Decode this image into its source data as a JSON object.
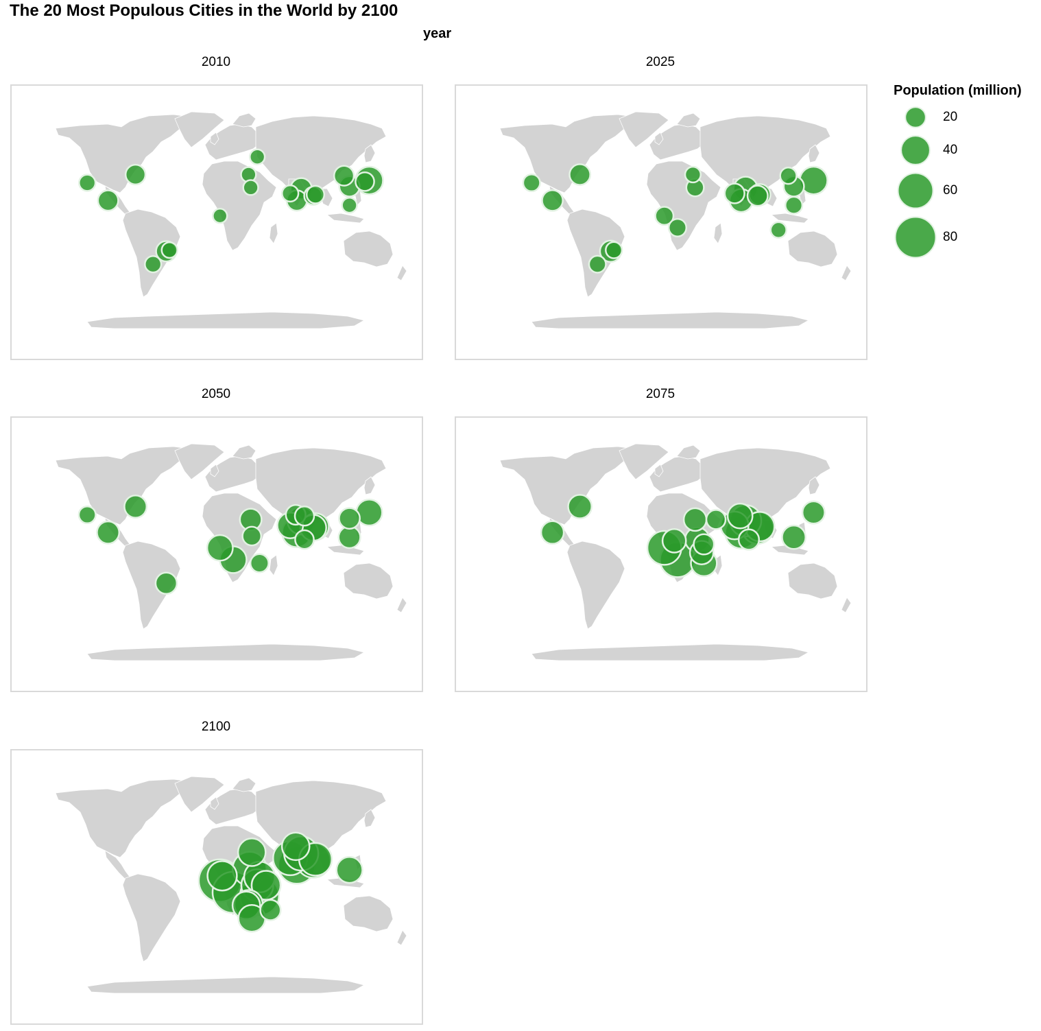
{
  "title": "The 20 Most Populous Cities in the World by 2100",
  "facet_strip_title": "year",
  "colors": {
    "land": "#d3d3d3",
    "bubble": "#2a9a2a",
    "bubble_stroke": "#e2f2e2",
    "panel_border": "#d9d9d9"
  },
  "legend": {
    "title": "Population (million)",
    "entries": [
      {
        "label": "20",
        "value": 20
      },
      {
        "label": "40",
        "value": 40
      },
      {
        "label": "60",
        "value": 60
      },
      {
        "label": "80",
        "value": 80
      }
    ]
  },
  "map_data": {
    "type": "bubble-map",
    "size_variable": "Population (million)",
    "panels": [
      {
        "year": "2010",
        "cities": [
          {
            "lon": -118,
            "lat": 34,
            "pop": 13
          },
          {
            "lon": -99,
            "lat": 19,
            "pop": 20
          },
          {
            "lon": -74,
            "lat": 41,
            "pop": 19
          },
          {
            "lon": -58,
            "lat": -35,
            "pop": 13
          },
          {
            "lon": -46,
            "lat": -24,
            "pop": 20
          },
          {
            "lon": -43,
            "lat": -23,
            "pop": 12
          },
          {
            "lon": 37,
            "lat": 56,
            "pop": 11
          },
          {
            "lon": 29,
            "lat": 41,
            "pop": 11
          },
          {
            "lon": 31,
            "lat": 30,
            "pop": 11
          },
          {
            "lon": 3,
            "lat": 6,
            "pop": 10
          },
          {
            "lon": 67,
            "lat": 25,
            "pop": 13
          },
          {
            "lon": 73,
            "lat": 19,
            "pop": 20
          },
          {
            "lon": 77,
            "lat": 29,
            "pop": 22
          },
          {
            "lon": 88,
            "lat": 23,
            "pop": 16
          },
          {
            "lon": 116,
            "lat": 40,
            "pop": 19
          },
          {
            "lon": 121,
            "lat": 31,
            "pop": 20
          },
          {
            "lon": 121,
            "lat": 15,
            "pop": 11
          },
          {
            "lon": 139,
            "lat": 36,
            "pop": 37
          },
          {
            "lon": 135,
            "lat": 35,
            "pop": 17
          },
          {
            "lon": 90,
            "lat": 24,
            "pop": 15
          }
        ]
      },
      {
        "year": "2025",
        "cities": [
          {
            "lon": -118,
            "lat": 34,
            "pop": 14
          },
          {
            "lon": -99,
            "lat": 19,
            "pop": 21
          },
          {
            "lon": -74,
            "lat": 41,
            "pop": 21
          },
          {
            "lon": -58,
            "lat": -35,
            "pop": 14
          },
          {
            "lon": -46,
            "lat": -24,
            "pop": 22
          },
          {
            "lon": -43,
            "lat": -23,
            "pop": 13
          },
          {
            "lon": 31,
            "lat": 30,
            "pop": 15
          },
          {
            "lon": 29,
            "lat": 41,
            "pop": 12
          },
          {
            "lon": 3,
            "lat": 6,
            "pop": 16
          },
          {
            "lon": 15,
            "lat": -4,
            "pop": 15
          },
          {
            "lon": 67,
            "lat": 25,
            "pop": 19
          },
          {
            "lon": 73,
            "lat": 19,
            "pop": 26
          },
          {
            "lon": 77,
            "lat": 29,
            "pop": 28
          },
          {
            "lon": 90,
            "lat": 24,
            "pop": 22
          },
          {
            "lon": 116,
            "lat": 40,
            "pop": 13
          },
          {
            "lon": 121,
            "lat": 31,
            "pop": 20
          },
          {
            "lon": 121,
            "lat": 15,
            "pop": 14
          },
          {
            "lon": 139,
            "lat": 36,
            "pop": 37
          },
          {
            "lon": 107,
            "lat": -6,
            "pop": 12
          },
          {
            "lon": 88,
            "lat": 23,
            "pop": 20
          }
        ]
      },
      {
        "year": "2050",
        "cities": [
          {
            "lon": -118,
            "lat": 34,
            "pop": 14
          },
          {
            "lon": -99,
            "lat": 19,
            "pop": 24
          },
          {
            "lon": -74,
            "lat": 41,
            "pop": 24
          },
          {
            "lon": -46,
            "lat": -24,
            "pop": 22
          },
          {
            "lon": 3,
            "lat": 6,
            "pop": 32
          },
          {
            "lon": 15,
            "lat": -4,
            "pop": 35
          },
          {
            "lon": 31,
            "lat": 30,
            "pop": 23
          },
          {
            "lon": 32,
            "lat": 16,
            "pop": 17
          },
          {
            "lon": 39,
            "lat": -7,
            "pop": 16
          },
          {
            "lon": 67,
            "lat": 25,
            "pop": 32
          },
          {
            "lon": 73,
            "lat": 19,
            "pop": 42
          },
          {
            "lon": 77,
            "lat": 29,
            "pop": 37
          },
          {
            "lon": 72,
            "lat": 34,
            "pop": 19
          },
          {
            "lon": 80,
            "lat": 33,
            "pop": 18
          },
          {
            "lon": 88,
            "lat": 23,
            "pop": 33
          },
          {
            "lon": 90,
            "lat": 24,
            "pop": 35
          },
          {
            "lon": 80,
            "lat": 13,
            "pop": 17
          },
          {
            "lon": 121,
            "lat": 31,
            "pop": 21
          },
          {
            "lon": 139,
            "lat": 36,
            "pop": 33
          },
          {
            "lon": 121,
            "lat": 15,
            "pop": 23
          }
        ]
      },
      {
        "year": "2075",
        "cities": [
          {
            "lon": -99,
            "lat": 19,
            "pop": 25
          },
          {
            "lon": -74,
            "lat": 41,
            "pop": 27
          },
          {
            "lon": 3,
            "lat": 6,
            "pop": 56
          },
          {
            "lon": 15,
            "lat": -4,
            "pop": 60
          },
          {
            "lon": 12,
            "lat": 12,
            "pop": 27
          },
          {
            "lon": 31,
            "lat": 30,
            "pop": 25
          },
          {
            "lon": 33,
            "lat": 13,
            "pop": 29
          },
          {
            "lon": 37,
            "lat": 2,
            "pop": 27
          },
          {
            "lon": 39,
            "lat": -7,
            "pop": 33
          },
          {
            "lon": 39,
            "lat": 9,
            "pop": 20
          },
          {
            "lon": 67,
            "lat": 25,
            "pop": 38
          },
          {
            "lon": 73,
            "lat": 19,
            "pop": 50
          },
          {
            "lon": 77,
            "lat": 29,
            "pop": 48
          },
          {
            "lon": 72,
            "lat": 33,
            "pop": 30
          },
          {
            "lon": 88,
            "lat": 23,
            "pop": 50
          },
          {
            "lon": 90,
            "lat": 24,
            "pop": 42
          },
          {
            "lon": 80,
            "lat": 13,
            "pop": 20
          },
          {
            "lon": 121,
            "lat": 15,
            "pop": 27
          },
          {
            "lon": 139,
            "lat": 36,
            "pop": 24
          },
          {
            "lon": 50,
            "lat": 30,
            "pop": 18
          }
        ]
      },
      {
        "year": "2100",
        "cities": [
          {
            "lon": 3,
            "lat": 6,
            "pop": 88
          },
          {
            "lon": 15,
            "lat": -4,
            "pop": 83
          },
          {
            "lon": 5,
            "lat": 10,
            "pop": 42
          },
          {
            "lon": 30,
            "lat": 16,
            "pop": 56
          },
          {
            "lon": 32,
            "lat": 30,
            "pop": 37
          },
          {
            "lon": 37,
            "lat": 2,
            "pop": 50
          },
          {
            "lon": 39,
            "lat": -7,
            "pop": 74
          },
          {
            "lon": 39,
            "lat": 9,
            "pop": 46
          },
          {
            "lon": 45,
            "lat": 2,
            "pop": 41
          },
          {
            "lon": 27,
            "lat": -15,
            "pop": 37
          },
          {
            "lon": 32,
            "lat": -26,
            "pop": 35
          },
          {
            "lon": 29,
            "lat": -14,
            "pop": 39
          },
          {
            "lon": 67,
            "lat": 25,
            "pop": 57
          },
          {
            "lon": 73,
            "lat": 19,
            "pop": 67
          },
          {
            "lon": 77,
            "lat": 29,
            "pop": 57
          },
          {
            "lon": 88,
            "lat": 23,
            "pop": 58
          },
          {
            "lon": 90,
            "lat": 24,
            "pop": 52
          },
          {
            "lon": 72,
            "lat": 35,
            "pop": 37
          },
          {
            "lon": 121,
            "lat": 15,
            "pop": 33
          },
          {
            "lon": 49,
            "lat": -19,
            "pop": 20
          }
        ]
      }
    ]
  }
}
